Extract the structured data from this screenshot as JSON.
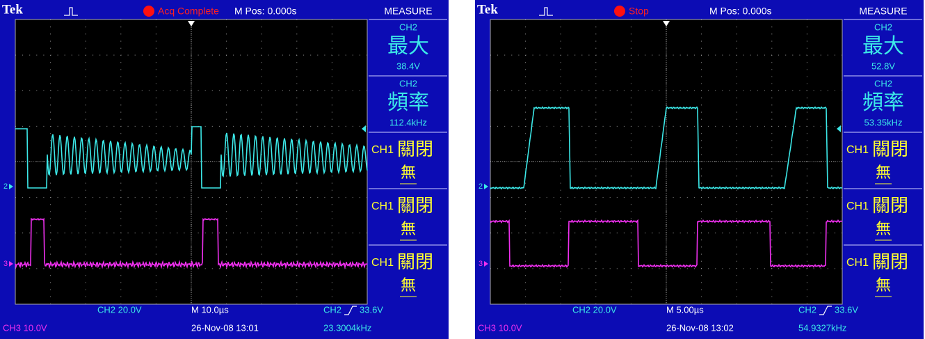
{
  "screens": [
    {
      "header": {
        "brand": "Tek",
        "status": "Acq Complete",
        "position": "M Pos: 0.000s",
        "menu_title": "MEASURE"
      },
      "measurements": [
        {
          "channel": "CH2",
          "name": "最大",
          "value": "38.4V"
        },
        {
          "channel": "CH2",
          "name": "頻率",
          "value": "112.4kHz"
        },
        {
          "channel": "CH1",
          "name": "關閉",
          "value": "無"
        },
        {
          "channel": "CH1",
          "name": "關閉",
          "value": "無"
        },
        {
          "channel": "CH1",
          "name": "關閉",
          "value": "無"
        }
      ],
      "markers": {
        "ch2": "2",
        "ch3": "3"
      },
      "footer": {
        "ch2_scale": "CH2  20.0V",
        "timebase": "M 10.0µs",
        "trigger_source": "CH2",
        "trigger_level": "33.6V",
        "ch3_scale": "CH3  10.0V",
        "datetime": "26-Nov-08 13:01",
        "frequency": "23.3004kHz"
      }
    },
    {
      "header": {
        "brand": "Tek",
        "status": "Stop",
        "position": "M Pos: 0.000s",
        "menu_title": "MEASURE"
      },
      "measurements": [
        {
          "channel": "CH2",
          "name": "最大",
          "value": "52.8V"
        },
        {
          "channel": "CH2",
          "name": "頻率",
          "value": "53.35kHz"
        },
        {
          "channel": "CH1",
          "name": "關閉",
          "value": "無"
        },
        {
          "channel": "CH1",
          "name": "關閉",
          "value": "無"
        },
        {
          "channel": "CH1",
          "name": "關閉",
          "value": "無"
        }
      ],
      "markers": {
        "ch2": "2",
        "ch3": "3"
      },
      "footer": {
        "ch2_scale": "CH2  20.0V",
        "timebase": "M 5.00µs",
        "trigger_source": "CH2",
        "trigger_level": "33.6V",
        "ch3_scale": "CH3  10.0V",
        "datetime": "26-Nov-08 13:02",
        "frequency": "54.9327kHz"
      }
    }
  ]
}
